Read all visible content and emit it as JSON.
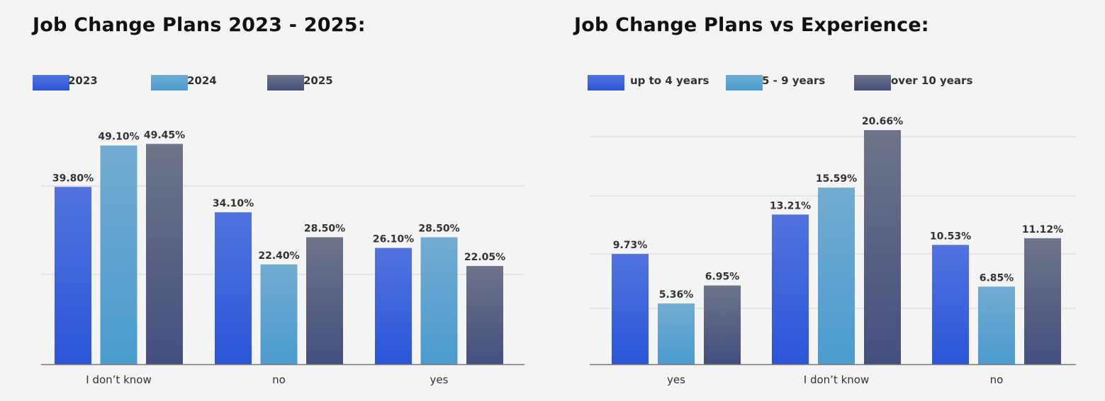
{
  "chart_data": [
    {
      "type": "bar",
      "title": "Job Change Plans 2023 - 2025:",
      "categories": [
        "I don’t know",
        "no",
        "yes"
      ],
      "series": [
        {
          "name": "2023",
          "values": [
            39.8,
            34.1,
            26.1
          ],
          "labels": [
            "39.80%",
            "34.10%",
            "26.10%"
          ],
          "color": "#2b55d8"
        },
        {
          "name": "2024",
          "values": [
            49.1,
            22.4,
            28.5
          ],
          "labels": [
            "49.10%",
            "22.40%",
            "28.50%"
          ],
          "color": "#4b9bd0"
        },
        {
          "name": "2025",
          "values": [
            49.45,
            28.5,
            22.05
          ],
          "labels": [
            "49.45%",
            "28.50%",
            "22.05%"
          ],
          "color": "#434f7e"
        }
      ],
      "ylim": [
        0,
        50
      ],
      "grid": true,
      "legend": "top-left",
      "xlabel": "",
      "ylabel": ""
    },
    {
      "type": "bar",
      "title": "Job Change Plans vs Experience:",
      "categories": [
        "yes",
        "I don’t know",
        "no"
      ],
      "series": [
        {
          "name": "up to 4 years",
          "values": [
            9.73,
            13.21,
            10.53
          ],
          "labels": [
            "9.73%",
            "13.21%",
            "10.53%"
          ],
          "color": "#2b55d8"
        },
        {
          "name": "5 - 9 years",
          "values": [
            5.36,
            15.59,
            6.85
          ],
          "labels": [
            "5.36%",
            "15.59%",
            "6.85%"
          ],
          "color": "#4b9bd0"
        },
        {
          "name": "over 10 years",
          "values": [
            6.95,
            20.66,
            11.12
          ],
          "labels": [
            "6.95%",
            "20.66%",
            "11.12%"
          ],
          "color": "#434f7e"
        }
      ],
      "ylim": [
        0,
        20.66
      ],
      "grid": true,
      "legend": "top-left",
      "xlabel": "",
      "ylabel": ""
    }
  ]
}
